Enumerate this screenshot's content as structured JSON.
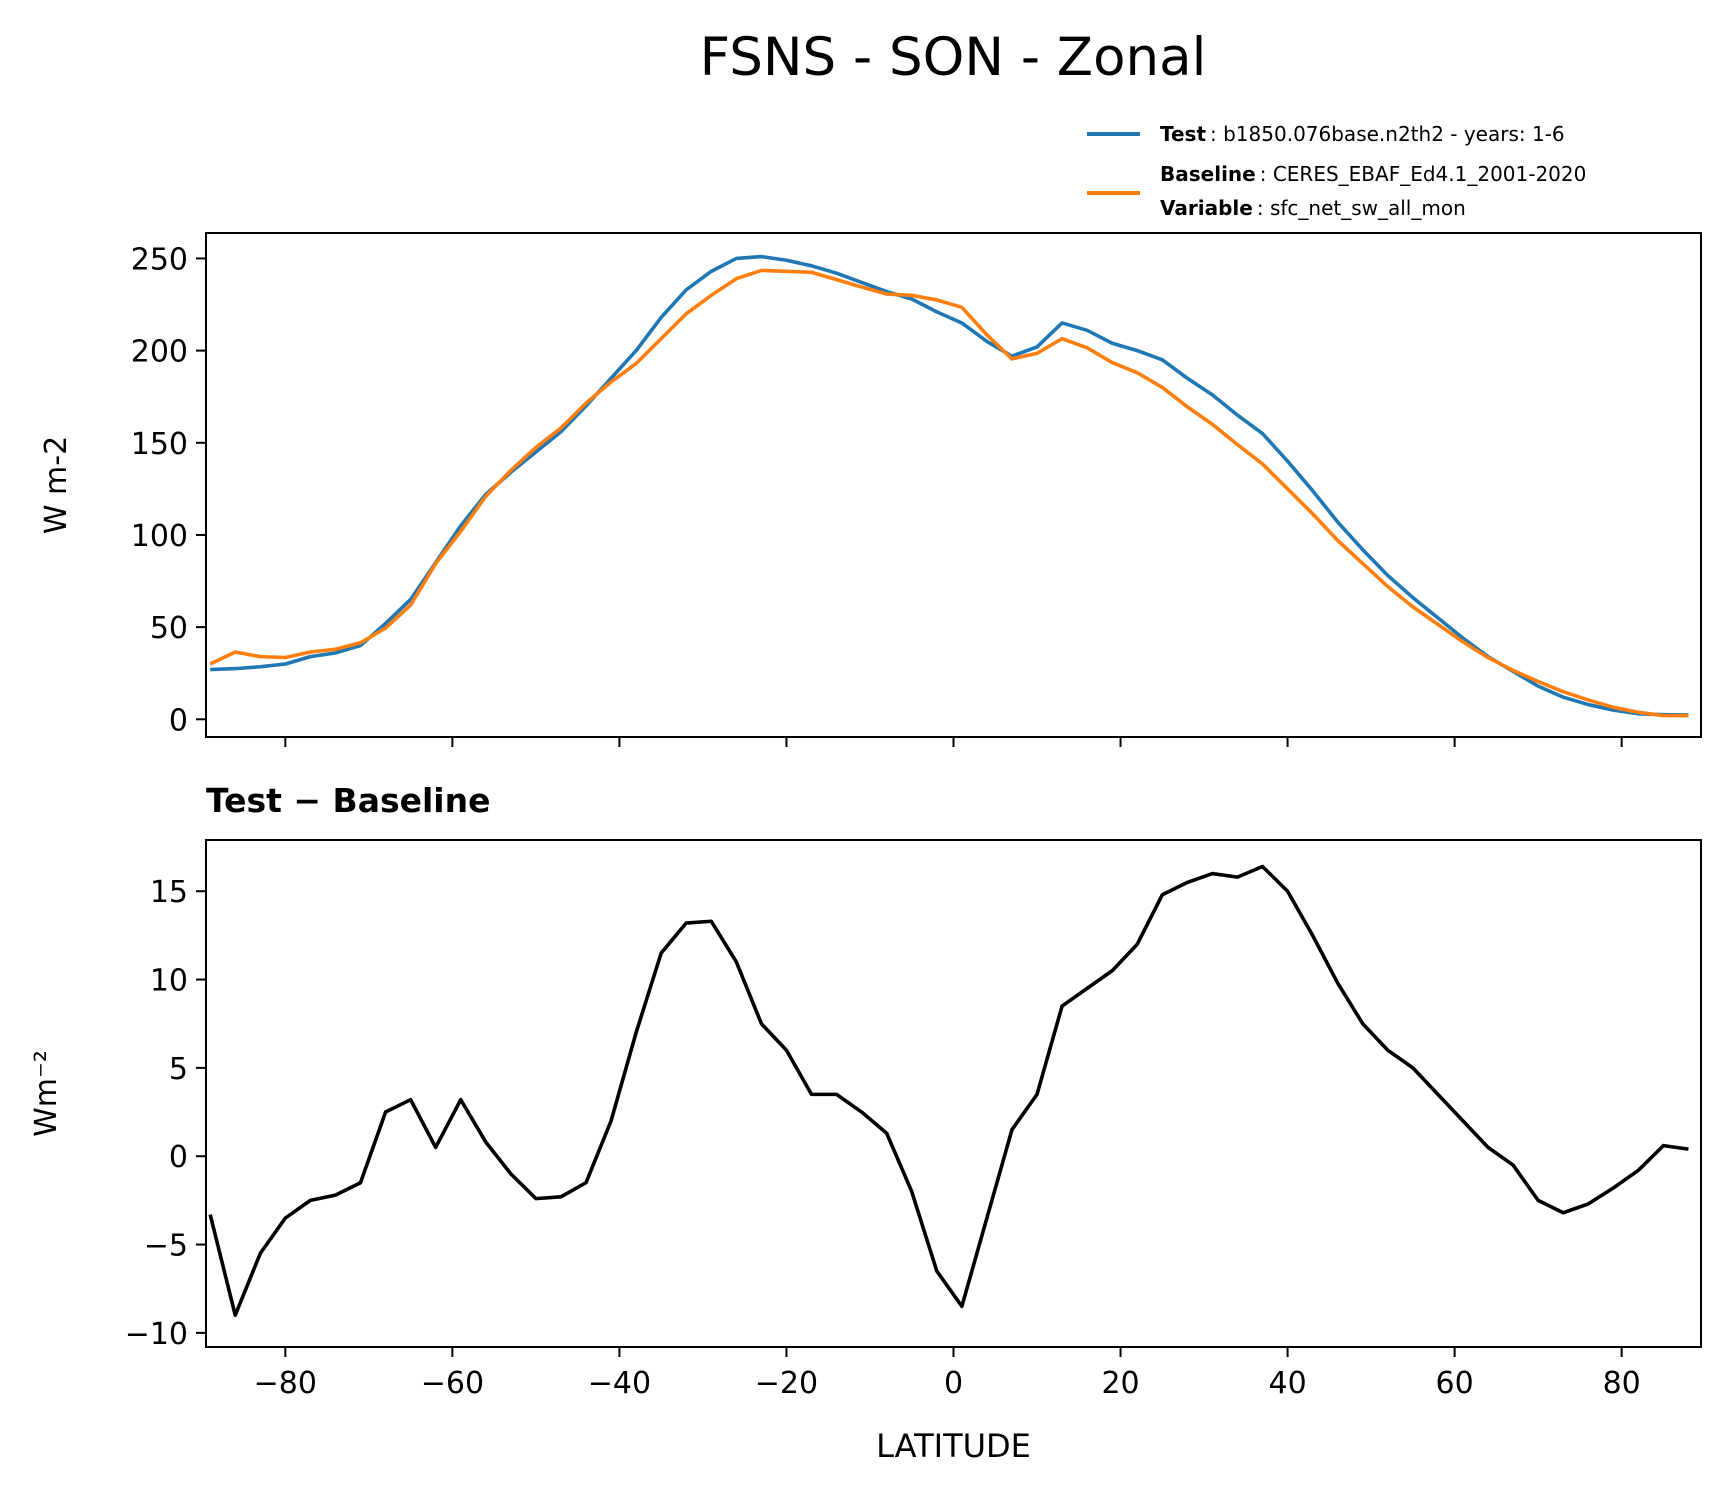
{
  "chart_data": [
    {
      "type": "line",
      "title": "FSNS - SON - Zonal",
      "ylabel": "W m-2",
      "x": [
        -89,
        -86,
        -83,
        -80,
        -77,
        -74,
        -71,
        -68,
        -65,
        -62,
        -59,
        -56,
        -53,
        -50,
        -47,
        -44,
        -41,
        -38,
        -35,
        -32,
        -29,
        -26,
        -23,
        -20,
        -17,
        -14,
        -11,
        -8,
        -5,
        -2,
        1,
        4,
        7,
        10,
        13,
        16,
        19,
        22,
        25,
        28,
        31,
        34,
        37,
        40,
        43,
        46,
        49,
        52,
        55,
        58,
        61,
        64,
        67,
        70,
        73,
        76,
        79,
        82,
        85,
        88
      ],
      "series": [
        {
          "name": "Test",
          "description": ": b1850.076base.n2th2 - years: 1-6",
          "color": "#1f77b4",
          "values": [
            27,
            27.5,
            28.5,
            30,
            34,
            36,
            40,
            52,
            65,
            85,
            105,
            122,
            134,
            145,
            156,
            170,
            185,
            200,
            218,
            233,
            243,
            250,
            251,
            249,
            246,
            242,
            237,
            232,
            228,
            221,
            215,
            205,
            197,
            202,
            215,
            211,
            204,
            200,
            195,
            185,
            176,
            165,
            155,
            140,
            124,
            107,
            92,
            78,
            66,
            55,
            44,
            34,
            26,
            18,
            12,
            8,
            5,
            3,
            2.5,
            2.3
          ]
        },
        {
          "name": "Baseline",
          "description": ": CERES_EBAF_Ed4.1_2001-2020",
          "color": "#ff7f0e",
          "extra": {
            "name": "Variable",
            "description": ": sfc_net_sw_all_mon"
          },
          "values": [
            30,
            36.5,
            34,
            33.5,
            36.5,
            38,
            41.5,
            49.5,
            62,
            84.5,
            102,
            121,
            135,
            147.5,
            158,
            171.5,
            183,
            193,
            206.5,
            220,
            230,
            239,
            243.5,
            243,
            242.5,
            238.5,
            234.5,
            230.7,
            230,
            227.5,
            223.5,
            208.5,
            195.5,
            198.5,
            206.5,
            201.5,
            193.5,
            188,
            180,
            169.5,
            160,
            149,
            138.5,
            125,
            111.5,
            97,
            84.5,
            72,
            61,
            51.5,
            42,
            33.5,
            26.5,
            20.5,
            15,
            10.5,
            6.5,
            3.8,
            2,
            2
          ]
        }
      ],
      "xlim": [
        -89.5,
        89.5
      ],
      "xticks": [
        -80,
        -60,
        -40,
        -20,
        0,
        20,
        40,
        60,
        80
      ],
      "ylim": [
        -9.6,
        263.8
      ],
      "yticks": [
        0,
        50,
        100,
        150,
        200,
        250
      ]
    },
    {
      "type": "line",
      "title": "Test − Baseline",
      "xlabel": "LATITUDE",
      "ylabel": "Wm⁻²",
      "x": [
        -89,
        -86,
        -83,
        -80,
        -77,
        -74,
        -71,
        -68,
        -65,
        -62,
        -59,
        -56,
        -53,
        -50,
        -47,
        -44,
        -41,
        -38,
        -35,
        -32,
        -29,
        -26,
        -23,
        -20,
        -17,
        -14,
        -11,
        -8,
        -5,
        -2,
        1,
        4,
        7,
        10,
        13,
        16,
        19,
        22,
        25,
        28,
        31,
        34,
        37,
        40,
        43,
        46,
        49,
        52,
        55,
        58,
        61,
        64,
        67,
        70,
        73,
        76,
        79,
        82,
        85,
        88
      ],
      "series": [
        {
          "color": "#000000",
          "values": [
            -3.3,
            -9.0,
            -5.5,
            -3.5,
            -2.5,
            -2.2,
            -1.5,
            2.5,
            3.2,
            0.5,
            3.2,
            0.8,
            -1.0,
            -2.4,
            -2.3,
            -1.5,
            2.0,
            7.0,
            11.5,
            13.2,
            13.3,
            11.0,
            7.5,
            6.0,
            3.5,
            3.5,
            2.5,
            1.3,
            -2.0,
            -6.5,
            -8.5,
            -3.5,
            1.5,
            3.5,
            8.5,
            9.5,
            10.5,
            12.0,
            14.8,
            15.5,
            16.0,
            15.8,
            16.4,
            15.0,
            12.5,
            9.8,
            7.5,
            6.0,
            5.0,
            3.5,
            2.0,
            0.5,
            -0.5,
            -2.5,
            -3.2,
            -2.7,
            -1.8,
            -0.8,
            0.6,
            0.4
          ]
        }
      ],
      "xlim": [
        -89.5,
        89.5
      ],
      "xticks": [
        {
          "value": -80,
          "label": "−80"
        },
        {
          "value": -60,
          "label": "−60"
        },
        {
          "value": -40,
          "label": "−40"
        },
        {
          "value": -20,
          "label": "−20"
        },
        0,
        20,
        40,
        60,
        80
      ],
      "ylim": [
        -10.8,
        17.9
      ],
      "yticks": [
        {
          "value": -10,
          "label": "−10"
        },
        {
          "value": -5,
          "label": "−5"
        },
        0,
        5,
        10,
        15
      ]
    }
  ]
}
